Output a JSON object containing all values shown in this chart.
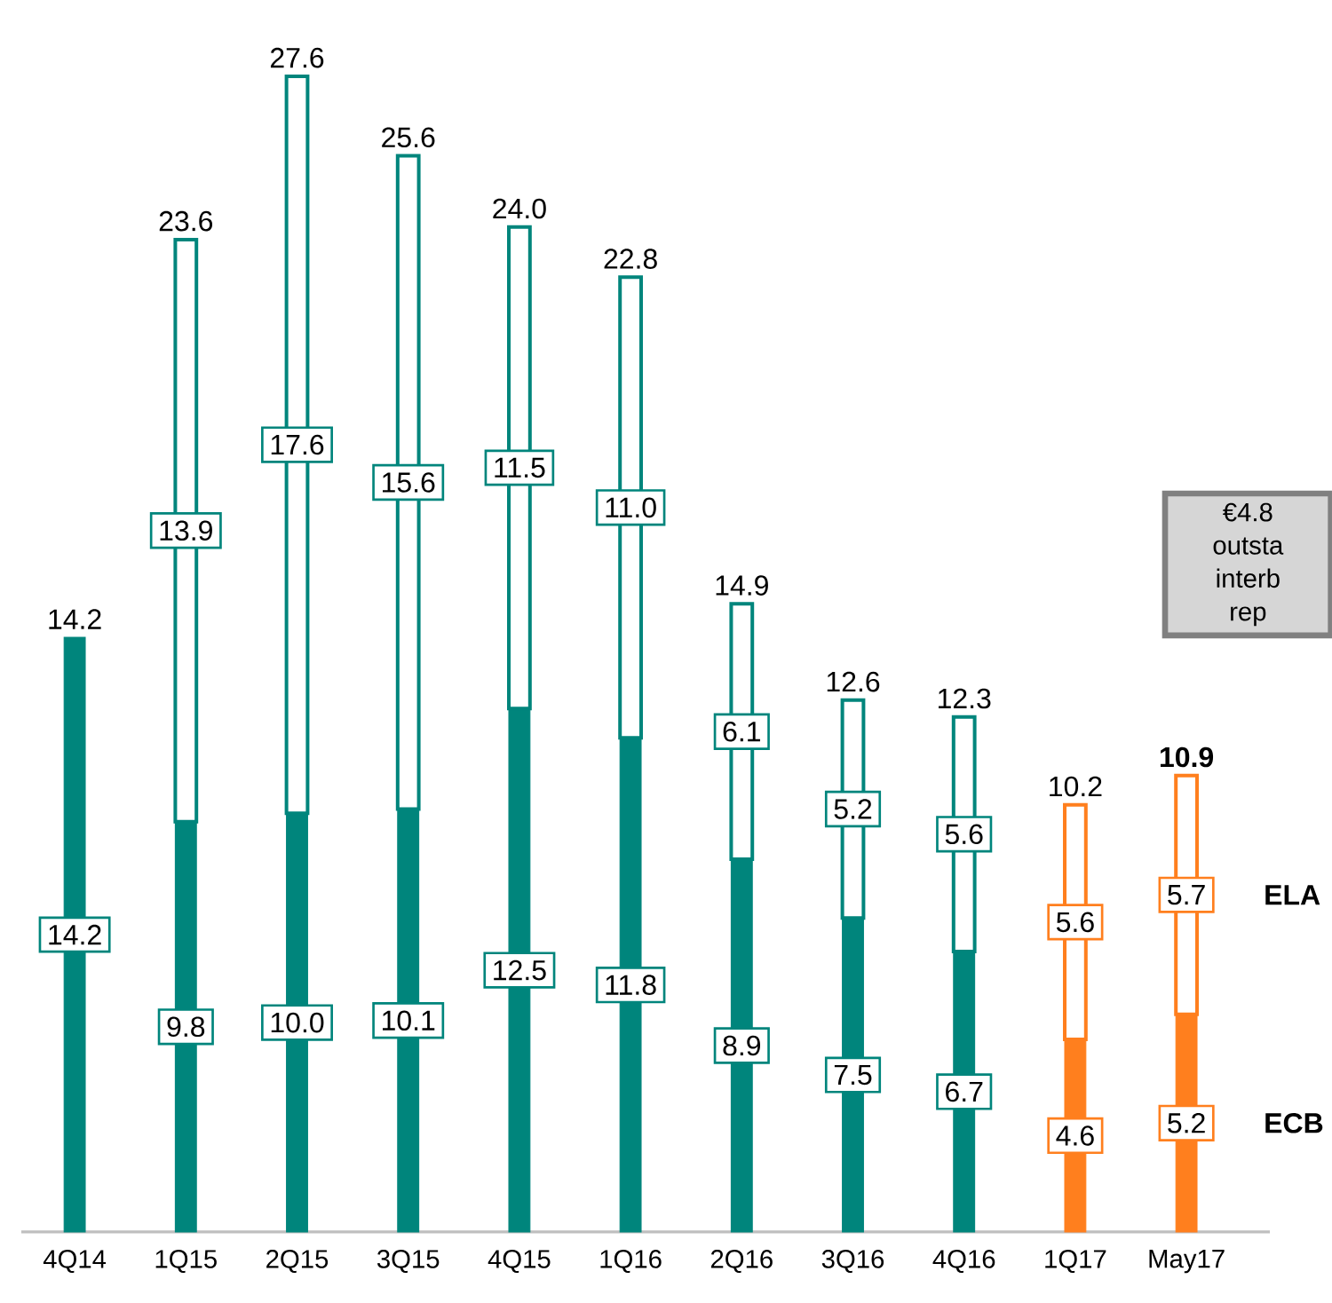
{
  "chart_data": {
    "type": "bar",
    "stacked": true,
    "legend": "right",
    "categories": [
      "4Q14",
      "1Q15",
      "2Q15",
      "3Q15",
      "4Q15",
      "1Q16",
      "2Q16",
      "3Q16",
      "4Q16",
      "1Q17",
      "May17"
    ],
    "series": [
      {
        "name": "ECB",
        "values": [
          14.2,
          9.8,
          10.0,
          10.1,
          12.5,
          11.8,
          8.9,
          7.5,
          6.7,
          4.6,
          5.2
        ],
        "value_labels": [
          "14.2",
          "9.8",
          "10.0",
          "10.1",
          "12.5",
          "11.8",
          "8.9",
          "7.5",
          "6.7",
          "4.6",
          "5.2"
        ],
        "colors": [
          "#00857c",
          "#00857c",
          "#00857c",
          "#00857c",
          "#00857c",
          "#00857c",
          "#00857c",
          "#00857c",
          "#00857c",
          "#ff7f1e",
          "#ff7f1e"
        ]
      },
      {
        "name": "ELA",
        "values": [
          null,
          13.9,
          17.6,
          15.6,
          11.5,
          11.0,
          6.1,
          5.2,
          5.6,
          5.6,
          5.7
        ],
        "value_labels": [
          null,
          "13.9",
          "17.6",
          "15.6",
          "11.5",
          "11.0",
          "6.1",
          "5.2",
          "5.6",
          "5.6",
          "5.7"
        ],
        "colors": [
          "#00857c",
          "#00857c",
          "#00857c",
          "#00857c",
          "#00857c",
          "#00857c",
          "#00857c",
          "#00857c",
          "#00857c",
          "#ff7f1e",
          "#ff7f1e"
        ]
      }
    ],
    "totals": [
      "14.2",
      "23.6",
      "27.6",
      "25.6",
      "24.0",
      "22.8",
      "14.9",
      "12.6",
      "12.3",
      "10.2",
      "**10.9**"
    ],
    "annotations": [
      "€4.8",
      "outsta",
      "interb",
      "rep"
    ]
  }
}
